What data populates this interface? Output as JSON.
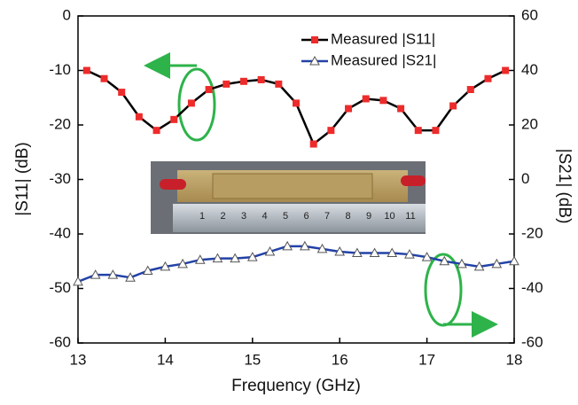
{
  "chart_data": {
    "type": "line",
    "xlabel": "Frequency (GHz)",
    "ylabel": "|S11| (dB)",
    "y2label": "|S21| (dB)",
    "xlim": [
      13,
      18
    ],
    "xticks": [
      13,
      14,
      15,
      16,
      17,
      18
    ],
    "ylim": [
      -60,
      0
    ],
    "yticks": [
      -60,
      -50,
      -40,
      -30,
      -20,
      -10,
      0
    ],
    "y2lim": [
      -60,
      60
    ],
    "y2ticks": [
      -60,
      -40,
      -20,
      0,
      20,
      40,
      60
    ],
    "legend": "upper right",
    "photo_labels": [
      "1",
      "2",
      "3",
      "4",
      "5",
      "6",
      "7",
      "8",
      "9",
      "10",
      "11"
    ],
    "series": [
      {
        "name": "Measured |S11|",
        "color": "#000000",
        "marker_color": "#ee2b2b",
        "marker": "square",
        "x": [
          13.1,
          13.3,
          13.5,
          13.7,
          13.9,
          14.1,
          14.3,
          14.5,
          14.7,
          14.9,
          15.1,
          15.3,
          15.5,
          15.7,
          15.9,
          16.1,
          16.3,
          16.5,
          16.7,
          16.9,
          17.1,
          17.3,
          17.5,
          17.7,
          17.9
        ],
        "values": [
          -10,
          -11.5,
          -14,
          -18.5,
          -21,
          -19,
          -16,
          -13.5,
          -12.5,
          -12,
          -11.7,
          -12.5,
          -16,
          -23.5,
          -21,
          -17,
          -15.2,
          -15.5,
          -17,
          -21,
          -21,
          -16.5,
          -13.5,
          -11.5,
          -10
        ]
      },
      {
        "name": "Measured |S21|",
        "color": "#2342a8",
        "marker_color": "#ffffff",
        "marker": "triangle",
        "axis": "y2",
        "x": [
          13.0,
          13.2,
          13.4,
          13.6,
          13.8,
          14.0,
          14.2,
          14.4,
          14.6,
          14.8,
          15.0,
          15.2,
          15.4,
          15.6,
          15.8,
          16.0,
          16.2,
          16.4,
          16.6,
          16.8,
          17.0,
          17.2,
          17.4,
          17.6,
          17.8,
          18.0
        ],
        "values": [
          -37.5,
          -35,
          -35,
          -36,
          -33.5,
          -32,
          -31,
          -29.5,
          -29,
          -29,
          -28.5,
          -26.5,
          -24.5,
          -24.5,
          -25.5,
          -26.5,
          -27,
          -27,
          -27,
          -27.5,
          -28.5,
          -30,
          -31,
          -32,
          -31,
          -30
        ]
      }
    ]
  }
}
